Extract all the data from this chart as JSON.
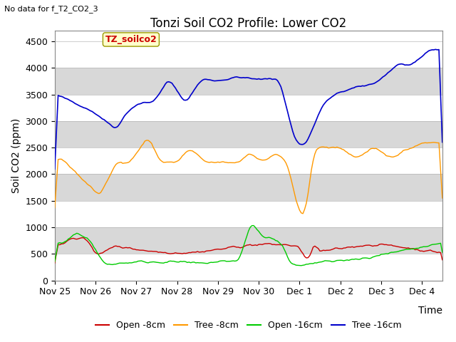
{
  "title": "Tonzi Soil CO2 Profile: Lower CO2",
  "subtitle": "No data for f_T2_CO2_3",
  "ylabel": "Soil CO2 (ppm)",
  "xlabel": "Time",
  "legend_label": "TZ_soilco2",
  "ylim": [
    0,
    4700
  ],
  "yticks": [
    0,
    500,
    1000,
    1500,
    2000,
    2500,
    3000,
    3500,
    4000,
    4500
  ],
  "series": {
    "open_8cm": {
      "color": "#cc0000",
      "label": "Open -8cm"
    },
    "tree_8cm": {
      "color": "#ff9900",
      "label": "Tree -8cm"
    },
    "open_16cm": {
      "color": "#00cc00",
      "label": "Open -16cm"
    },
    "tree_16cm": {
      "color": "#0000cc",
      "label": "Tree -16cm"
    }
  },
  "title_fontsize": 12,
  "axis_fontsize": 10,
  "tick_fontsize": 9,
  "band_colors": [
    "#ffffff",
    "#d8d8d8"
  ],
  "fig_facecolor": "#ffffff",
  "xlim_days": 9.5,
  "tick_days": [
    "Nov 25",
    "Nov 26",
    "Nov 27",
    "Nov 28",
    "Nov 29",
    "Nov 30",
    "Dec 1",
    "Dec 2",
    "Dec 3",
    "Dec 4"
  ]
}
